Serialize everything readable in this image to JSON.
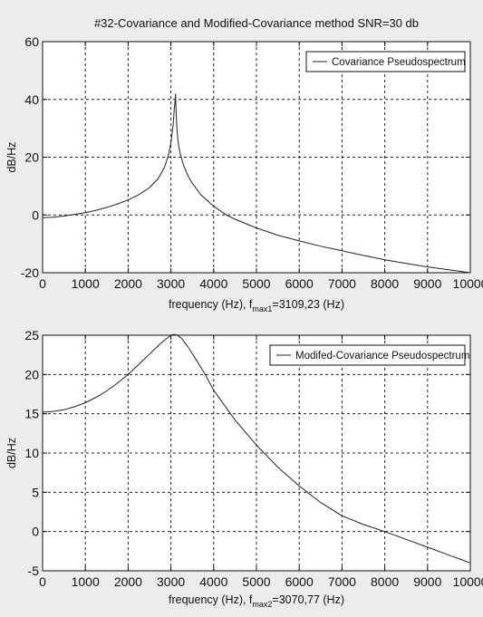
{
  "chart_data": [
    {
      "type": "line",
      "title": "#32-Covariance and Modified-Covariance method SNR=30 db",
      "ylabel": "dB/Hz",
      "xlabel": {
        "prefix": "frequency (Hz), f",
        "subscript": "max1",
        "suffix": "=3109,23 (Hz)"
      },
      "xlim": [
        0,
        10000
      ],
      "ylim": [
        -20,
        60
      ],
      "xticks": [
        0,
        1000,
        2000,
        3000,
        4000,
        5000,
        6000,
        7000,
        8000,
        9000,
        10000
      ],
      "yticks": [
        -20,
        0,
        20,
        40,
        60
      ],
      "grid": true,
      "legend_position": "top-right",
      "series": [
        {
          "name": "Covariance Pseudospectrum",
          "x": [
            0,
            250,
            500,
            750,
            1000,
            1250,
            1500,
            1750,
            2000,
            2250,
            2500,
            2700,
            2850,
            2950,
            3000,
            3050,
            3080,
            3100,
            3109,
            3120,
            3140,
            3170,
            3220,
            3300,
            3400,
            3500,
            3700,
            4000,
            4300,
            4500,
            5000,
            5500,
            6000,
            6500,
            7000,
            7500,
            8000,
            8500,
            9000,
            9500,
            10000
          ],
          "y": [
            -1,
            -0.8,
            -0.4,
            0.2,
            0.8,
            1.6,
            2.6,
            3.8,
            5.2,
            7.0,
            9.5,
            12.5,
            16.5,
            21,
            25,
            31,
            37,
            40,
            42,
            36,
            30,
            25,
            21,
            17,
            13.5,
            11,
            7,
            3,
            0,
            -1.5,
            -4.5,
            -7,
            -9,
            -10.8,
            -12.4,
            -14,
            -15.5,
            -16.8,
            -18,
            -19,
            -20
          ]
        }
      ]
    },
    {
      "type": "line",
      "ylabel": "dB/Hz",
      "xlabel": {
        "prefix": "frequency (Hz), f",
        "subscript": "max2",
        "suffix": "=3070,77 (Hz)"
      },
      "xlim": [
        0,
        10000
      ],
      "ylim": [
        -5,
        25
      ],
      "xticks": [
        0,
        1000,
        2000,
        3000,
        4000,
        5000,
        6000,
        7000,
        8000,
        9000,
        10000
      ],
      "yticks": [
        -5,
        0,
        5,
        10,
        15,
        20,
        25
      ],
      "grid": true,
      "legend_position": "top-right",
      "series": [
        {
          "name": "Modifed-Covariance Pseudospectrum",
          "x": [
            0,
            250,
            500,
            750,
            1000,
            1250,
            1500,
            1750,
            2000,
            2250,
            2500,
            2750,
            2900,
            3000,
            3071,
            3150,
            3250,
            3400,
            3600,
            3800,
            4000,
            4500,
            5000,
            5500,
            6000,
            6500,
            7000,
            7500,
            8000,
            8500,
            9000,
            9500,
            10000
          ],
          "y": [
            15.2,
            15.3,
            15.5,
            15.9,
            16.4,
            17.1,
            17.9,
            18.9,
            20,
            21.3,
            22.6,
            23.9,
            24.6,
            25,
            25.1,
            25,
            24.6,
            23.5,
            21.8,
            20,
            18,
            14.2,
            11,
            8.2,
            5.8,
            3.7,
            2,
            0.9,
            0,
            -1,
            -2,
            -3,
            -4
          ]
        }
      ]
    }
  ]
}
